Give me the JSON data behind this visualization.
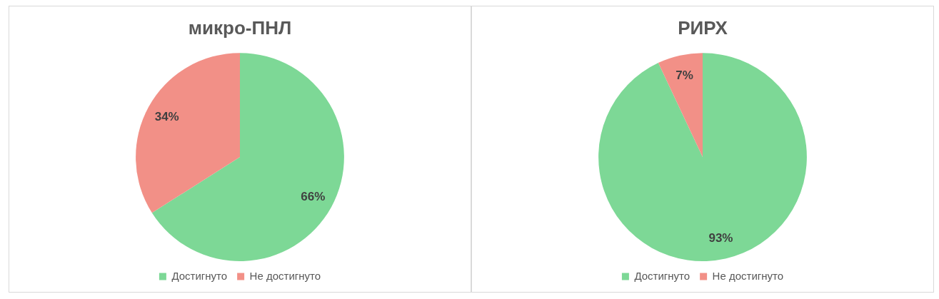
{
  "chart_data": [
    {
      "type": "pie",
      "title": "микро-ПНЛ",
      "categories": [
        "Достигнуто",
        "Не достигнуто"
      ],
      "values": [
        66,
        34
      ],
      "colors": [
        "#7dd896",
        "#f29087"
      ],
      "value_labels": [
        "66%",
        "34%"
      ],
      "legend": "bottom"
    },
    {
      "type": "pie",
      "title": "РИРХ",
      "categories": [
        "Достигнуто",
        "Не достигнуто"
      ],
      "values": [
        93,
        7
      ],
      "colors": [
        "#7dd896",
        "#f29087"
      ],
      "value_labels": [
        "93%",
        "7%"
      ],
      "legend": "bottom"
    }
  ]
}
